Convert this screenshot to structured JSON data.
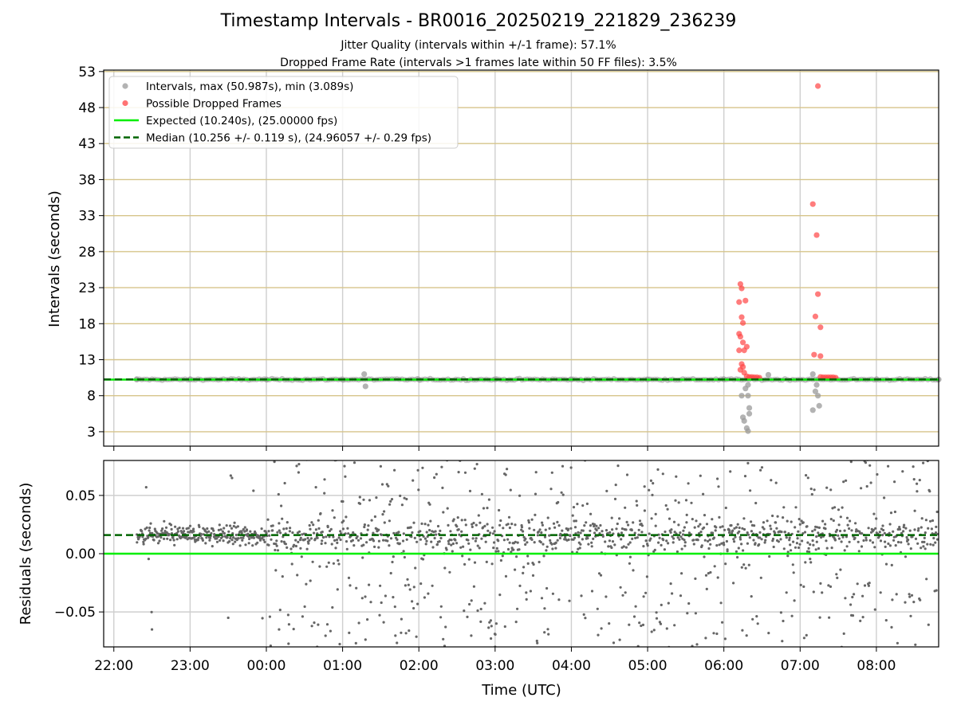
{
  "chart_data": [
    {
      "type": "scatter",
      "title": "Timestamp Intervals - BR0016_20250219_221829_236239",
      "subtitle_lines": [
        "Jitter Quality (intervals within +/-1 frame): 57.1%",
        "Dropped Frame Rate (intervals >1 frames late within 50 FF files): 3.5%"
      ],
      "ylabel": "Intervals (seconds)",
      "ylim": [
        1.0,
        53.2
      ],
      "yticks": [
        "3",
        "8",
        "13",
        "18",
        "23",
        "28",
        "33",
        "38",
        "43",
        "48",
        "53"
      ],
      "grid": true,
      "legend_position": "top-left",
      "legend": [
        {
          "label": "Intervals, max (50.987s), min (3.089s)",
          "kind": "marker",
          "color": "#999999"
        },
        {
          "label": "Possible Dropped Frames",
          "kind": "marker",
          "color": "#ff4444"
        },
        {
          "label": "Expected (10.240s), (25.00000 fps)",
          "kind": "line",
          "color": "#00ee00",
          "dash": false
        },
        {
          "label": "Median (10.256 +/- 0.119 s), (24.96057 +/- 0.29 fps)",
          "kind": "line",
          "color": "#006400",
          "dash": true
        }
      ],
      "expected_line": 10.24,
      "median_line": 10.256,
      "series": [
        {
          "name": "Intervals, max (50.987s), min (3.089s)",
          "color": "#999999",
          "note_baseline": "continuous band of points at ~10.24-10.26 s from 22:18 to 08:49",
          "points": [
            {
              "x": "22:18",
              "y": 10.24
            },
            {
              "x": "23:00",
              "y": 10.25
            },
            {
              "x": "00:00",
              "y": 10.26
            },
            {
              "x": "01:00",
              "y": 10.26
            },
            {
              "x": "01:17",
              "y": 11.0
            },
            {
              "x": "01:18",
              "y": 9.3
            },
            {
              "x": "02:00",
              "y": 10.25
            },
            {
              "x": "03:00",
              "y": 10.26
            },
            {
              "x": "04:00",
              "y": 10.26
            },
            {
              "x": "05:00",
              "y": 10.26
            },
            {
              "x": "06:00",
              "y": 10.26
            },
            {
              "x": "06:14",
              "y": 8.0
            },
            {
              "x": "06:15",
              "y": 5.0
            },
            {
              "x": "06:16",
              "y": 4.5
            },
            {
              "x": "06:17",
              "y": 9.0
            },
            {
              "x": "06:18",
              "y": 3.5
            },
            {
              "x": "06:19",
              "y": 3.089
            },
            {
              "x": "06:20",
              "y": 6.3
            },
            {
              "x": "06:20",
              "y": 5.5
            },
            {
              "x": "06:19",
              "y": 8.0
            },
            {
              "x": "06:19",
              "y": 9.5
            },
            {
              "x": "06:35",
              "y": 10.9
            },
            {
              "x": "07:10",
              "y": 6.0
            },
            {
              "x": "07:12",
              "y": 8.6
            },
            {
              "x": "07:14",
              "y": 8.0
            },
            {
              "x": "07:15",
              "y": 6.6
            },
            {
              "x": "07:13",
              "y": 9.5
            },
            {
              "x": "07:10",
              "y": 11.0
            },
            {
              "x": "08:00",
              "y": 10.26
            },
            {
              "x": "08:49",
              "y": 10.26
            }
          ]
        },
        {
          "name": "Possible Dropped Frames",
          "color": "#ff4444",
          "points": [
            {
              "x": "06:12",
              "y": 21.0
            },
            {
              "x": "06:13",
              "y": 23.5
            },
            {
              "x": "06:14",
              "y": 22.9
            },
            {
              "x": "06:17",
              "y": 21.2
            },
            {
              "x": "06:14",
              "y": 18.9
            },
            {
              "x": "06:15",
              "y": 18.1
            },
            {
              "x": "06:12",
              "y": 16.6
            },
            {
              "x": "06:13",
              "y": 16.2
            },
            {
              "x": "06:15",
              "y": 15.4
            },
            {
              "x": "06:18",
              "y": 14.8
            },
            {
              "x": "06:16",
              "y": 14.3
            },
            {
              "x": "06:12",
              "y": 14.3
            },
            {
              "x": "06:14",
              "y": 12.4
            },
            {
              "x": "06:15",
              "y": 12.0
            },
            {
              "x": "06:13",
              "y": 11.6
            },
            {
              "x": "06:16",
              "y": 11.2
            },
            {
              "x": "06:18",
              "y": 10.7
            },
            {
              "x": "06:20",
              "y": 10.6
            },
            {
              "x": "06:22",
              "y": 10.6
            },
            {
              "x": "06:24",
              "y": 10.55
            },
            {
              "x": "06:26",
              "y": 10.55
            },
            {
              "x": "06:28",
              "y": 10.5
            },
            {
              "x": "07:14",
              "y": 50.987
            },
            {
              "x": "07:10",
              "y": 34.6
            },
            {
              "x": "07:13",
              "y": 30.3
            },
            {
              "x": "07:14",
              "y": 22.1
            },
            {
              "x": "07:12",
              "y": 19.0
            },
            {
              "x": "07:16",
              "y": 17.5
            },
            {
              "x": "07:11",
              "y": 13.7
            },
            {
              "x": "07:16",
              "y": 13.5
            },
            {
              "x": "07:16",
              "y": 10.6
            },
            {
              "x": "07:18",
              "y": 10.55
            },
            {
              "x": "07:20",
              "y": 10.55
            },
            {
              "x": "07:22",
              "y": 10.55
            },
            {
              "x": "07:24",
              "y": 10.55
            },
            {
              "x": "07:26",
              "y": 10.55
            },
            {
              "x": "07:28",
              "y": 10.5
            }
          ]
        }
      ]
    },
    {
      "type": "scatter",
      "xlabel": "Time (UTC)",
      "ylabel": "Residuals (seconds)",
      "xlim": [
        "21:52",
        "08:49"
      ],
      "xticks": [
        "22:00",
        "23:00",
        "00:00",
        "01:00",
        "02:00",
        "03:00",
        "04:00",
        "05:00",
        "06:00",
        "07:00",
        "08:00"
      ],
      "ylim": [
        -0.08,
        0.08
      ],
      "yticks": [
        "−0.05",
        "0.00",
        "0.05"
      ],
      "grid": true,
      "expected_line": 0.0,
      "median_line": 0.016,
      "series": [
        {
          "name": "Residuals",
          "color": "#666666",
          "note": "approx. 1600 points between 22:18 and 08:49; tight band 0.00-0.03 s before 00:00, widening to roughly -0.08..0.08 s afterwards",
          "point_count": 1600,
          "points": [
            {
              "x": "22:30",
              "y": -0.065
            },
            {
              "x": "23:32",
              "y": 0.067
            },
            {
              "x": "23:33",
              "y": 0.065
            },
            {
              "x": "23:30",
              "y": -0.055
            },
            {
              "x": "00:10",
              "y": -0.065
            },
            {
              "x": "00:40",
              "y": -0.08
            },
            {
              "x": "01:30",
              "y": 0.075
            },
            {
              "x": "03:00",
              "y": -0.08
            },
            {
              "x": "07:05",
              "y": -0.07
            }
          ]
        }
      ]
    }
  ]
}
